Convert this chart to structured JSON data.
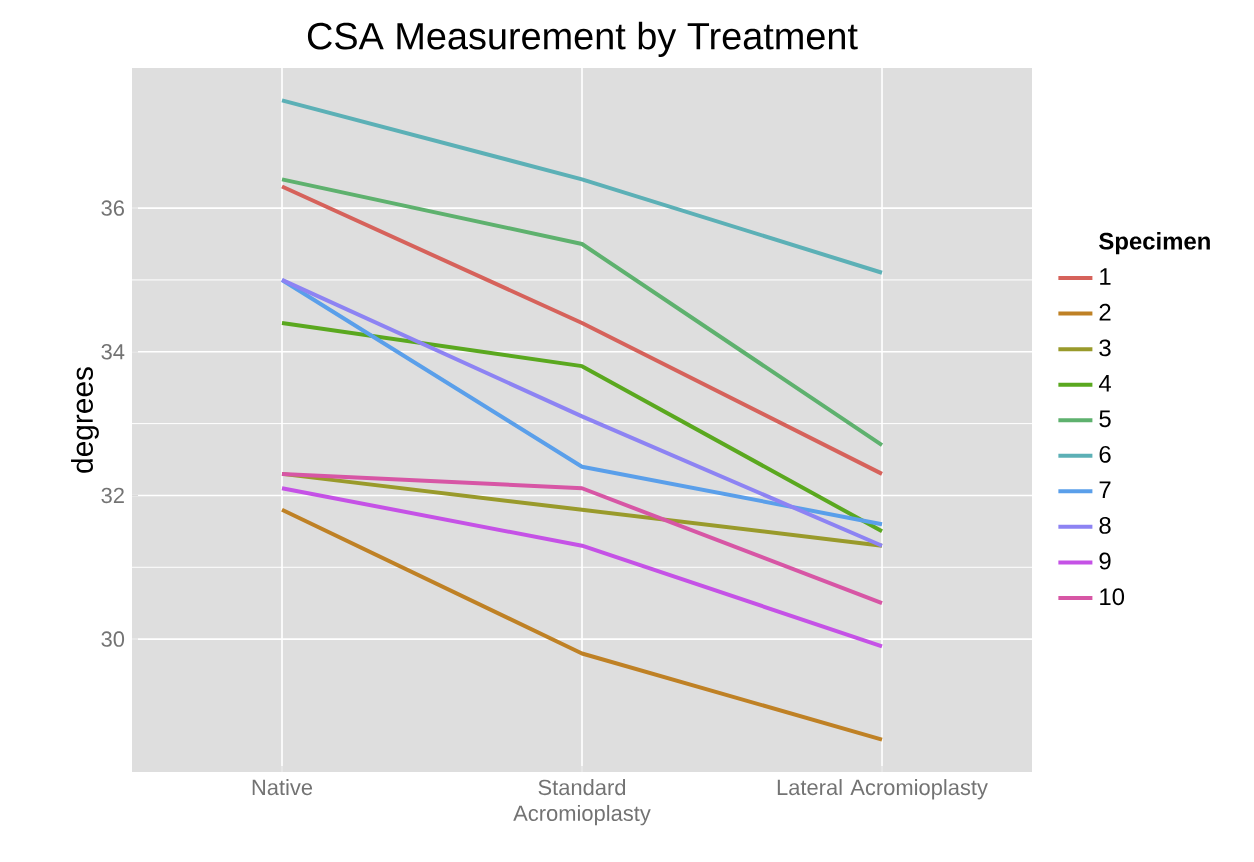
{
  "chart_data": {
    "type": "line",
    "title": "CSA Measurement by Treatment",
    "ylabel": "degrees",
    "legend_title": "Specimen",
    "legend": "right",
    "grid": true,
    "categories": [
      "Native",
      "Standard Acromioplasty",
      "Lateral Acromioplasty"
    ],
    "ylim": [
      28.15,
      37.95
    ],
    "yticks": [
      30,
      32,
      34,
      36
    ],
    "series": [
      {
        "name": "1",
        "color": "#d6625b",
        "values": [
          36.3,
          34.4,
          32.3
        ]
      },
      {
        "name": "2",
        "color": "#bf8125",
        "values": [
          31.8,
          29.8,
          28.6
        ]
      },
      {
        "name": "3",
        "color": "#999a2b",
        "values": [
          32.3,
          31.8,
          31.3
        ]
      },
      {
        "name": "4",
        "color": "#5aa81f",
        "values": [
          34.4,
          33.8,
          31.5
        ]
      },
      {
        "name": "5",
        "color": "#5eb16e",
        "values": [
          36.4,
          35.5,
          32.7
        ]
      },
      {
        "name": "6",
        "color": "#5cb0b6",
        "values": [
          37.5,
          36.4,
          35.1
        ]
      },
      {
        "name": "7",
        "color": "#5a9fea",
        "values": [
          35.0,
          32.4,
          31.6
        ]
      },
      {
        "name": "8",
        "color": "#8d83f3",
        "values": [
          35.0,
          33.1,
          31.3
        ]
      },
      {
        "name": "9",
        "color": "#c552e6",
        "values": [
          32.1,
          31.3,
          29.9
        ]
      },
      {
        "name": "10",
        "color": "#d756a5",
        "values": [
          32.3,
          32.1,
          30.5
        ]
      }
    ]
  }
}
